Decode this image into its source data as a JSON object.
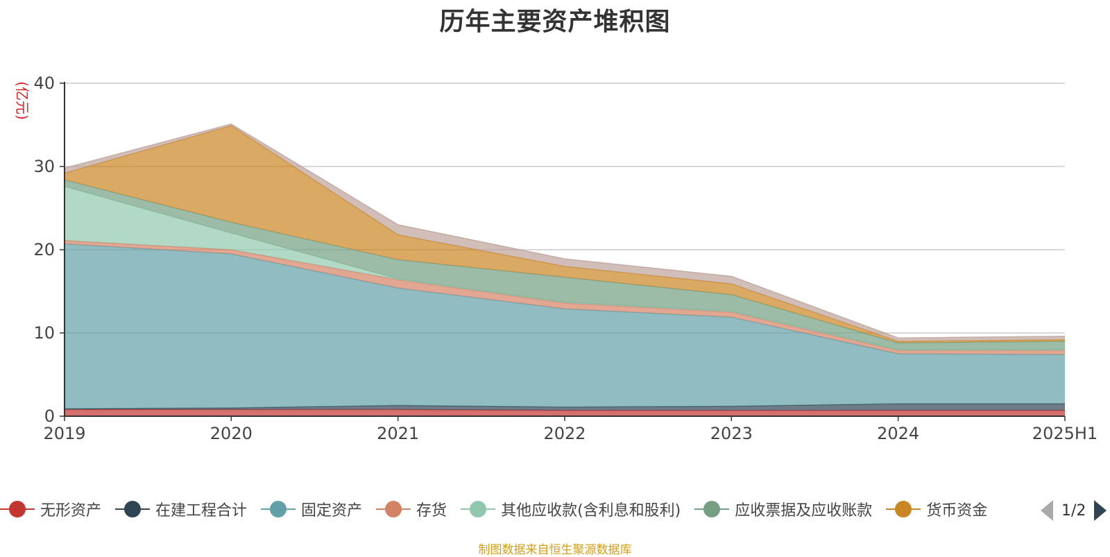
{
  "chart_data": {
    "type": "area",
    "stacked": true,
    "title": "历年主要资产堆积图",
    "ylabel": "(亿元)",
    "ylim": [
      0,
      40
    ],
    "yticks": [
      0,
      10,
      20,
      30,
      40
    ],
    "grid": true,
    "categories": [
      "2019",
      "2020",
      "2021",
      "2022",
      "2023",
      "2024",
      "2025H1"
    ],
    "series": [
      {
        "name": "无形资产",
        "color": "#c23531",
        "values": [
          0.8,
          0.8,
          0.8,
          0.7,
          0.7,
          0.7,
          0.7
        ]
      },
      {
        "name": "在建工程合计",
        "color": "#2f4554",
        "values": [
          0.1,
          0.2,
          0.5,
          0.4,
          0.5,
          0.8,
          0.8
        ]
      },
      {
        "name": "固定资产",
        "color": "#61a0a8",
        "values": [
          19.8,
          18.5,
          14.1,
          11.8,
          10.7,
          6.0,
          5.9
        ]
      },
      {
        "name": "存货",
        "color": "#d48265",
        "values": [
          0.4,
          0.5,
          1.0,
          0.7,
          0.6,
          0.4,
          0.5
        ]
      },
      {
        "name": "其他应收款(含利息和股利)",
        "color": "#91c7ae",
        "values": [
          6.5,
          2.0,
          0.1,
          0.1,
          0.1,
          0.1,
          0.1
        ]
      },
      {
        "name": "应收票据及应收账款",
        "color": "#749f83",
        "values": [
          0.8,
          1.3,
          2.3,
          3.0,
          2.0,
          0.8,
          1.0
        ]
      },
      {
        "name": "货币资金",
        "color": "#ca8622",
        "values": [
          0.8,
          11.6,
          3.0,
          1.3,
          1.3,
          0.2,
          0.2
        ]
      },
      {
        "name": "",
        "color": "#bda29a",
        "values": [
          0.6,
          0.2,
          1.2,
          0.9,
          0.9,
          0.4,
          0.4
        ]
      }
    ]
  },
  "legend": {
    "items": [
      {
        "label": "无形资产",
        "color": "#c23531"
      },
      {
        "label": "在建工程合计",
        "color": "#2f4554"
      },
      {
        "label": "固定资产",
        "color": "#61a0a8"
      },
      {
        "label": "存货",
        "color": "#d48265"
      },
      {
        "label": "其他应收款(含利息和股利)",
        "color": "#91c7ae"
      },
      {
        "label": "应收票据及应收账款",
        "color": "#749f83"
      },
      {
        "label": "货币资金",
        "color": "#ca8622"
      }
    ],
    "page_indicator": "1/2"
  },
  "source_note": "制图数据来自恒生聚源数据库"
}
